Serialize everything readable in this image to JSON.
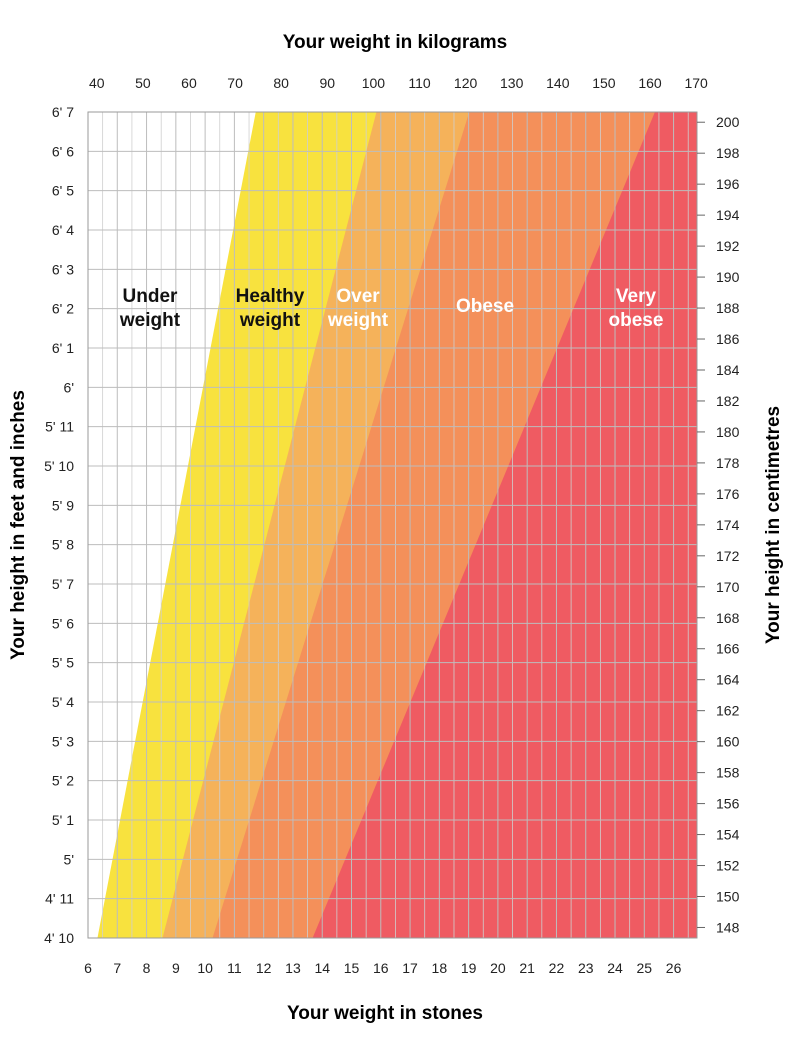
{
  "chart_data": {
    "type": "area",
    "title": "",
    "x_top_label": "Your weight in kilograms",
    "x_bottom_label": "Your weight in stones",
    "y_left_label": "Your height in feet and inches",
    "y_right_label": "Your height in centimetres",
    "kg_ticks": [
      40,
      50,
      60,
      70,
      80,
      90,
      100,
      110,
      120,
      130,
      140,
      150,
      160,
      170
    ],
    "stone_ticks": [
      6,
      7,
      8,
      9,
      10,
      11,
      12,
      13,
      14,
      15,
      16,
      17,
      18,
      19,
      20,
      21,
      22,
      23,
      24,
      25,
      26
    ],
    "stone_range": [
      6,
      26.8
    ],
    "height_in_range": [
      58,
      79
    ],
    "height_ft_labels": [
      "4' 10",
      "4' 11",
      "5'",
      "5' 1",
      "5' 2",
      "5' 3",
      "5' 4",
      "5' 5",
      "5' 6",
      "5' 7",
      "5' 8",
      "5' 9",
      "5' 10",
      "5' 11",
      "6'",
      "6' 1",
      "6' 2",
      "6' 3",
      "6' 4",
      "6' 5",
      "6' 6",
      "6' 7"
    ],
    "cm_ticks": [
      148,
      150,
      152,
      154,
      156,
      158,
      160,
      162,
      164,
      166,
      168,
      170,
      172,
      174,
      176,
      178,
      180,
      182,
      184,
      186,
      188,
      190,
      192,
      194,
      196,
      198,
      200
    ],
    "grid": true,
    "zones": [
      {
        "name": "Under weight",
        "label_lines": [
          "Under",
          "weight"
        ],
        "bmi_from": 0,
        "bmi_to": 18.5,
        "color": "#ffffff",
        "label_color": "#111111"
      },
      {
        "name": "Healthy weight",
        "label_lines": [
          "Healthy",
          "weight"
        ],
        "bmi_from": 18.5,
        "bmi_to": 25,
        "color": "#f8e23e",
        "label_color": "#111111"
      },
      {
        "name": "Over weight",
        "label_lines": [
          "Over",
          "weight"
        ],
        "bmi_from": 25,
        "bmi_to": 30,
        "color": "#f5b25a",
        "label_color": "#ffffff"
      },
      {
        "name": "Obese",
        "label_lines": [
          "Obese"
        ],
        "bmi_from": 30,
        "bmi_to": 40,
        "color": "#f4905a",
        "label_color": "#ffffff"
      },
      {
        "name": "Very obese",
        "label_lines": [
          "Very",
          "obese"
        ],
        "bmi_from": 40,
        "bmi_to": 100,
        "color": "#ef5b62",
        "label_color": "#ffffff"
      }
    ]
  }
}
